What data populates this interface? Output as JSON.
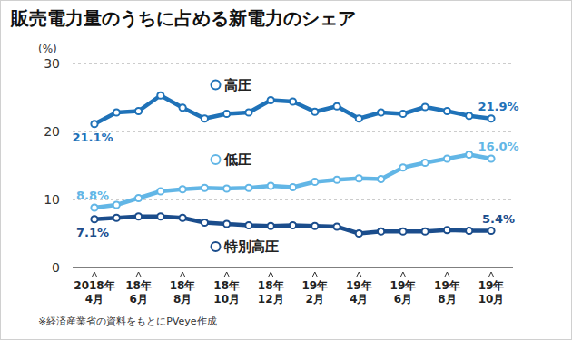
{
  "chart_data": {
    "type": "line",
    "title": "販売電力量のうちに占める新電力のシェア",
    "y_label": "(%)",
    "note": "※経済産業省の資料をもとにPVeye作成",
    "categories": [
      "2018年\n4月",
      null,
      "18年\n6月",
      null,
      "18年\n8月",
      null,
      "18年\n10月",
      null,
      "18年\n12月",
      null,
      "19年\n2月",
      null,
      "19年\n4月",
      null,
      "19年\n6月",
      null,
      "19年\n8月",
      null,
      "19年\n10月"
    ],
    "series": [
      {
        "name": "高圧",
        "color": "#1f72b8",
        "marker": "circle",
        "values": [
          21.1,
          22.8,
          23.0,
          25.3,
          23.5,
          21.9,
          22.6,
          22.8,
          24.6,
          24.4,
          22.9,
          23.7,
          21.9,
          22.8,
          22.6,
          23.6,
          23.0,
          22.3,
          21.9
        ],
        "value_labels": [
          "21.1%",
          null,
          null,
          null,
          null,
          null,
          null,
          null,
          null,
          null,
          null,
          null,
          null,
          null,
          null,
          null,
          null,
          null,
          "21.9%"
        ]
      },
      {
        "name": "低圧",
        "color": "#62b6e6",
        "marker": "circle",
        "values": [
          8.8,
          9.2,
          10.2,
          11.2,
          11.5,
          11.7,
          11.6,
          11.7,
          12.0,
          11.8,
          12.6,
          12.9,
          13.1,
          13.0,
          14.7,
          15.4,
          16.0,
          16.6,
          16.0
        ],
        "value_labels": [
          "8.8%",
          null,
          null,
          null,
          null,
          null,
          null,
          null,
          null,
          null,
          null,
          null,
          null,
          null,
          null,
          null,
          null,
          null,
          "16.0%"
        ]
      },
      {
        "name": "特別高圧",
        "color": "#1b4d8c",
        "marker": "circle",
        "values": [
          7.1,
          7.3,
          7.5,
          7.5,
          7.3,
          6.6,
          6.4,
          6.2,
          6.1,
          6.2,
          6.1,
          6.0,
          5.0,
          5.3,
          5.3,
          5.3,
          5.5,
          5.4,
          5.4
        ],
        "value_labels": [
          "7.1%",
          null,
          null,
          null,
          null,
          null,
          null,
          null,
          null,
          null,
          null,
          null,
          null,
          null,
          null,
          null,
          null,
          null,
          "5.4%"
        ]
      }
    ],
    "ylim": [
      0,
      30
    ],
    "yticks": [
      0,
      10,
      20,
      30
    ],
    "grid": true,
    "data_labels": true
  }
}
